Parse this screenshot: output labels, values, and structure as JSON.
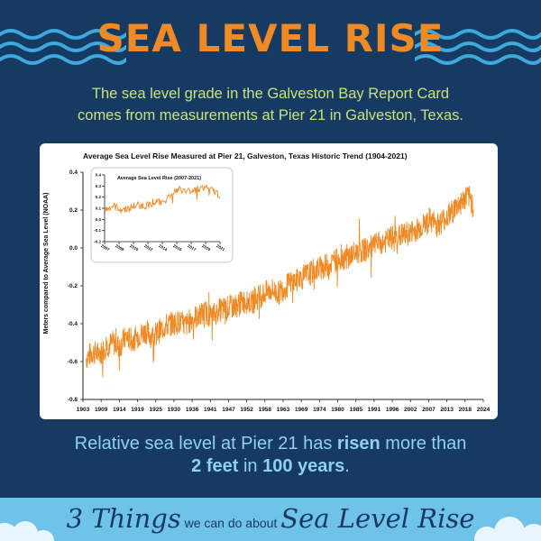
{
  "header": {
    "title": "SEA LEVEL RISE",
    "subtitle_line1": "The sea level grade in the Galveston Bay Report Card",
    "subtitle_line2": "comes from measurements at Pier 21 in Galveston, Texas."
  },
  "summary": {
    "part1": "Relative sea level at Pier 21 has ",
    "part2": "risen",
    "part3": " more than",
    "part4": "2 feet",
    "part5": " in ",
    "part6": "100 years",
    "part7": "."
  },
  "banner": {
    "part1": "3 Things",
    "part2": " we can do about ",
    "part3": "Sea Level Rise"
  },
  "colors": {
    "background": "#173a63",
    "title": "#f08a24",
    "subtitle": "#c9e27d",
    "series": "#f08a24",
    "summary_text": "#8fd1ee",
    "banner": "#6fc3e8"
  },
  "chart_data": [
    {
      "type": "line",
      "title": "Average Sea Level Rise Measured at Pier 21, Galveston, Texas Historic Trend (1904-2021)",
      "ylabel": "Meters compared to Average Sea Level (NOAA)",
      "xlabel": "",
      "x_ticks": [
        "1903",
        "1909",
        "1914",
        "1919",
        "1925",
        "1930",
        "1936",
        "1941",
        "1947",
        "1952",
        "1958",
        "1963",
        "1969",
        "1974",
        "1980",
        "1985",
        "1991",
        "1996",
        "2002",
        "2007",
        "2013",
        "2018",
        "2024"
      ],
      "y_ticks": [
        "0.4",
        "0.2",
        "0.0",
        "-0.2",
        "-0.4",
        "-0.6",
        "-0.8"
      ],
      "xlim": [
        1903,
        2024
      ],
      "ylim": [
        -0.8,
        0.4
      ],
      "grid": false,
      "series": [
        {
          "values": [
            [
              1904,
              -0.58
            ],
            [
              1906,
              -0.55
            ],
            [
              1908,
              -0.56
            ],
            [
              1910,
              -0.52
            ],
            [
              1912,
              -0.5
            ],
            [
              1914,
              -0.52
            ],
            [
              1916,
              -0.47
            ],
            [
              1918,
              -0.49
            ],
            [
              1920,
              -0.46
            ],
            [
              1922,
              -0.44
            ],
            [
              1924,
              -0.47
            ],
            [
              1926,
              -0.44
            ],
            [
              1928,
              -0.41
            ],
            [
              1930,
              -0.4
            ],
            [
              1932,
              -0.39
            ],
            [
              1934,
              -0.41
            ],
            [
              1936,
              -0.37
            ],
            [
              1938,
              -0.36
            ],
            [
              1940,
              -0.34
            ],
            [
              1942,
              -0.36
            ],
            [
              1944,
              -0.33
            ],
            [
              1946,
              -0.32
            ],
            [
              1948,
              -0.31
            ],
            [
              1950,
              -0.3
            ],
            [
              1952,
              -0.28
            ],
            [
              1954,
              -0.29
            ],
            [
              1956,
              -0.26
            ],
            [
              1958,
              -0.24
            ],
            [
              1960,
              -0.22
            ],
            [
              1962,
              -0.24
            ],
            [
              1964,
              -0.21
            ],
            [
              1966,
              -0.18
            ],
            [
              1968,
              -0.17
            ],
            [
              1970,
              -0.15
            ],
            [
              1972,
              -0.13
            ],
            [
              1974,
              -0.11
            ],
            [
              1976,
              -0.1
            ],
            [
              1978,
              -0.08
            ],
            [
              1980,
              -0.06
            ],
            [
              1982,
              -0.05
            ],
            [
              1984,
              -0.04
            ],
            [
              1986,
              -0.02
            ],
            [
              1988,
              -0.01
            ],
            [
              1990,
              0.0
            ],
            [
              1992,
              0.02
            ],
            [
              1994,
              0.03
            ],
            [
              1996,
              0.05
            ],
            [
              1998,
              0.06
            ],
            [
              2000,
              0.07
            ],
            [
              2002,
              0.08
            ],
            [
              2004,
              0.1
            ],
            [
              2006,
              0.12
            ],
            [
              2008,
              0.15
            ],
            [
              2010,
              0.12
            ],
            [
              2012,
              0.15
            ],
            [
              2014,
              0.18
            ],
            [
              2016,
              0.22
            ],
            [
              2018,
              0.25
            ],
            [
              2019,
              0.27
            ],
            [
              2020,
              0.26
            ],
            [
              2021,
              0.22
            ]
          ]
        }
      ]
    },
    {
      "type": "line",
      "title": "Average Sea Level Rise (2007-2021)",
      "x_ticks": [
        "2007",
        "2008",
        "2010",
        "2012",
        "2014",
        "2016",
        "2017",
        "2019",
        "2021"
      ],
      "y_ticks": [
        "0.4",
        "0.3",
        "0.2",
        "0.1",
        "0.0",
        "-0.1",
        "-0.2"
      ],
      "xlim": [
        2007,
        2021
      ],
      "ylim": [
        -0.2,
        0.4
      ],
      "grid": false,
      "series": [
        {
          "values": [
            [
              2007,
              0.08
            ],
            [
              2008,
              0.12
            ],
            [
              2009,
              0.09
            ],
            [
              2010,
              0.1
            ],
            [
              2011,
              0.13
            ],
            [
              2012,
              0.12
            ],
            [
              2013,
              0.16
            ],
            [
              2014,
              0.15
            ],
            [
              2015,
              0.22
            ],
            [
              2016,
              0.27
            ],
            [
              2017,
              0.25
            ],
            [
              2018,
              0.27
            ],
            [
              2019,
              0.29
            ],
            [
              2020,
              0.26
            ],
            [
              2021,
              0.22
            ]
          ]
        }
      ]
    }
  ]
}
